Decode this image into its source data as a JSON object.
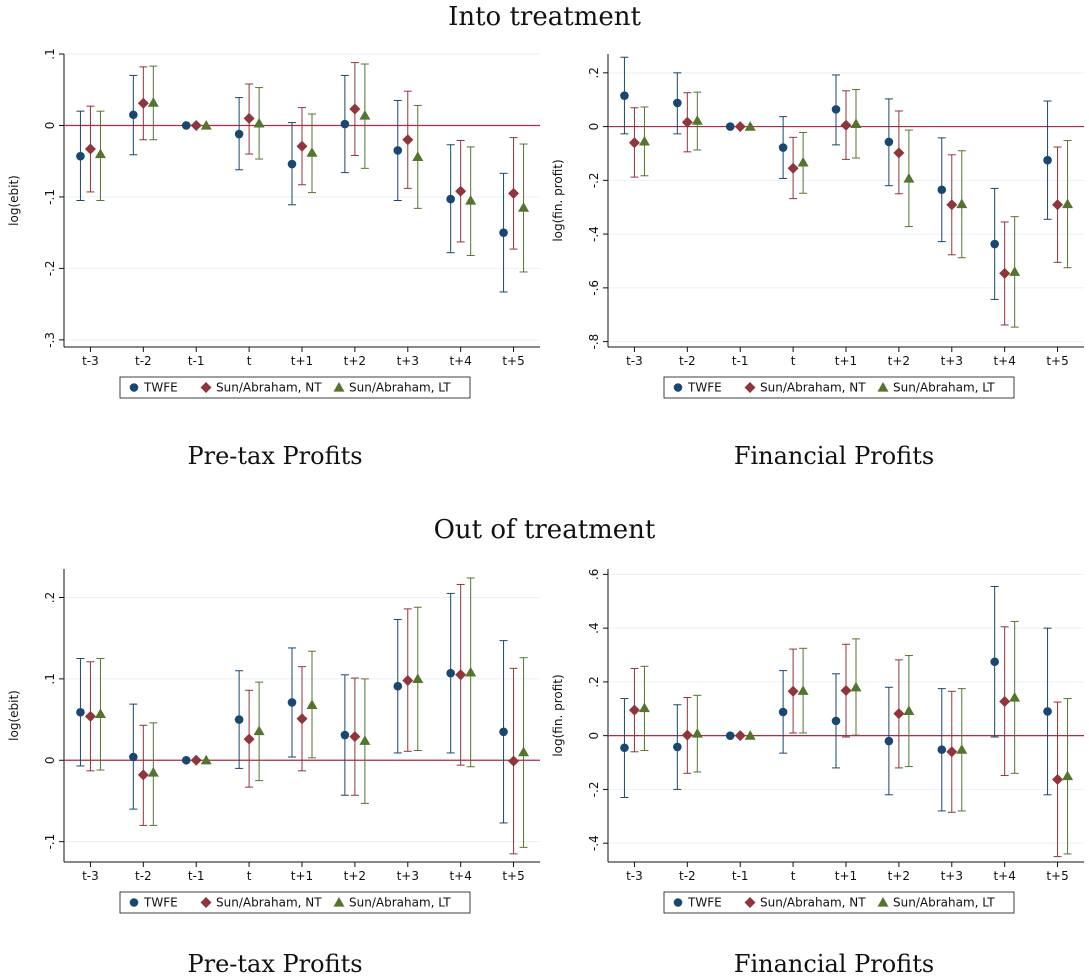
{
  "sections": [
    {
      "title": "Into treatment"
    },
    {
      "title": "Out of treatment"
    }
  ],
  "colors": {
    "TWFE": "#1a476f",
    "Sun/Abraham, NT": "#90353b",
    "Sun/Abraham, LT": "#55752f",
    "zero_line": "#b22a43",
    "grid": "#eaf0f5"
  },
  "legend": [
    "TWFE",
    "Sun/Abraham, NT",
    "Sun/Abraham, LT"
  ],
  "chart_data": [
    {
      "type": "scatter",
      "title": "Pre-tax Profits",
      "ylabel": "log(ebit)",
      "categories": [
        "t-3",
        "t-2",
        "t-1",
        "t",
        "t+1",
        "t+2",
        "t+3",
        "t+4",
        "t+5"
      ],
      "yticks": [
        0.1,
        0,
        -0.1,
        -0.2,
        -0.3
      ],
      "ytick_labels": [
        ".1",
        "0",
        "-.1",
        "-.2",
        "-.3"
      ],
      "ylim": [
        -0.31,
        0.1
      ],
      "series": [
        {
          "name": "TWFE",
          "marker": "circle",
          "values": [
            -0.043,
            0.015,
            0.0,
            -0.012,
            -0.054,
            0.002,
            -0.035,
            -0.103,
            -0.15
          ],
          "lower": [
            -0.105,
            -0.041,
            0.0,
            -0.062,
            -0.111,
            -0.066,
            -0.105,
            -0.178,
            -0.233
          ],
          "upper": [
            0.02,
            0.07,
            0.0,
            0.039,
            0.004,
            0.07,
            0.035,
            -0.027,
            -0.067
          ]
        },
        {
          "name": "Sun/Abraham, NT",
          "marker": "diamond",
          "values": [
            -0.033,
            0.031,
            0.0,
            0.01,
            -0.029,
            0.023,
            -0.02,
            -0.092,
            -0.095
          ],
          "lower": [
            -0.093,
            -0.02,
            0.0,
            -0.04,
            -0.083,
            -0.042,
            -0.088,
            -0.163,
            -0.173
          ],
          "upper": [
            0.027,
            0.082,
            0.0,
            0.058,
            0.025,
            0.088,
            0.048,
            -0.021,
            -0.017
          ]
        },
        {
          "name": "Sun/Abraham, LT",
          "marker": "triangle",
          "values": [
            -0.04,
            0.032,
            0.0,
            0.003,
            -0.038,
            0.014,
            -0.044,
            -0.105,
            -0.115
          ],
          "lower": [
            -0.105,
            -0.02,
            0.0,
            -0.047,
            -0.094,
            -0.06,
            -0.116,
            -0.182,
            -0.205
          ],
          "upper": [
            0.02,
            0.083,
            0.0,
            0.053,
            0.016,
            0.086,
            0.028,
            -0.03,
            -0.026
          ]
        }
      ]
    },
    {
      "type": "scatter",
      "title": "Financial Profits",
      "ylabel": "log(fin. profit)",
      "categories": [
        "t-3",
        "t-2",
        "t-1",
        "t",
        "t+1",
        "t+2",
        "t+3",
        "t+4",
        "t+5"
      ],
      "yticks": [
        0.2,
        0,
        -0.2,
        -0.4,
        -0.6,
        -0.8
      ],
      "ytick_labels": [
        ".2",
        "0",
        "-.2",
        "-.4",
        "-.6",
        "-.8"
      ],
      "ylim": [
        -0.82,
        0.27
      ],
      "series": [
        {
          "name": "TWFE",
          "marker": "circle",
          "values": [
            0.115,
            0.088,
            0.0,
            -0.078,
            0.064,
            -0.057,
            -0.235,
            -0.437,
            -0.125
          ],
          "lower": [
            -0.027,
            -0.027,
            0.0,
            -0.193,
            -0.068,
            -0.22,
            -0.428,
            -0.643,
            -0.345
          ],
          "upper": [
            0.258,
            0.2,
            0.0,
            0.037,
            0.192,
            0.103,
            -0.042,
            -0.23,
            0.095
          ]
        },
        {
          "name": "Sun/Abraham, NT",
          "marker": "diamond",
          "values": [
            -0.06,
            0.016,
            0.0,
            -0.155,
            0.005,
            -0.098,
            -0.291,
            -0.546,
            -0.291
          ],
          "lower": [
            -0.188,
            -0.094,
            0.0,
            -0.268,
            -0.122,
            -0.25,
            -0.477,
            -0.738,
            -0.505
          ],
          "upper": [
            0.07,
            0.126,
            0.0,
            -0.04,
            0.133,
            0.058,
            -0.105,
            -0.355,
            -0.076
          ]
        },
        {
          "name": "Sun/Abraham, LT",
          "marker": "triangle",
          "values": [
            -0.055,
            0.022,
            0.0,
            -0.133,
            0.01,
            -0.193,
            -0.288,
            -0.54,
            -0.288
          ],
          "lower": [
            -0.183,
            -0.087,
            0.0,
            -0.248,
            -0.117,
            -0.372,
            -0.488,
            -0.746,
            -0.525
          ],
          "upper": [
            0.073,
            0.128,
            0.0,
            -0.022,
            0.138,
            -0.013,
            -0.09,
            -0.335,
            -0.052
          ]
        }
      ]
    },
    {
      "type": "scatter",
      "title": "Pre-tax Profits",
      "ylabel": "log(ebit)",
      "categories": [
        "t-3",
        "t-2",
        "t-1",
        "t",
        "t+1",
        "t+2",
        "t+3",
        "t+4",
        "t+5"
      ],
      "yticks": [
        0.2,
        0.1,
        0,
        -0.1
      ],
      "ytick_labels": [
        ".2",
        ".1",
        "0",
        "-.1"
      ],
      "ylim": [
        -0.125,
        0.235
      ],
      "series": [
        {
          "name": "TWFE",
          "marker": "circle",
          "values": [
            0.059,
            0.004,
            0.0,
            0.05,
            0.071,
            0.031,
            0.091,
            0.107,
            0.035
          ],
          "lower": [
            -0.007,
            -0.06,
            0.0,
            -0.01,
            0.004,
            -0.043,
            0.009,
            0.009,
            -0.077
          ],
          "upper": [
            0.125,
            0.069,
            0.0,
            0.11,
            0.138,
            0.105,
            0.173,
            0.205,
            0.147
          ]
        },
        {
          "name": "Sun/Abraham, NT",
          "marker": "diamond",
          "values": [
            0.054,
            -0.018,
            0.0,
            0.026,
            0.051,
            0.029,
            0.098,
            0.105,
            -0.001
          ],
          "lower": [
            -0.013,
            -0.08,
            0.0,
            -0.033,
            -0.013,
            -0.043,
            0.011,
            -0.006,
            -0.115
          ],
          "upper": [
            0.121,
            0.043,
            0.0,
            0.086,
            0.115,
            0.101,
            0.186,
            0.216,
            0.113
          ]
        },
        {
          "name": "Sun/Abraham, LT",
          "marker": "triangle",
          "values": [
            0.057,
            -0.015,
            0.0,
            0.036,
            0.068,
            0.024,
            0.1,
            0.108,
            0.01
          ],
          "lower": [
            -0.012,
            -0.08,
            0.0,
            -0.025,
            0.003,
            -0.053,
            0.012,
            -0.008,
            -0.107
          ],
          "upper": [
            0.125,
            0.046,
            0.0,
            0.096,
            0.134,
            0.1,
            0.188,
            0.224,
            0.126
          ]
        }
      ]
    },
    {
      "type": "scatter",
      "title": "Financial Profits",
      "ylabel": "log(fin. profit)",
      "categories": [
        "t-3",
        "t-2",
        "t-1",
        "t",
        "t+1",
        "t+2",
        "t+3",
        "t+4",
        "t+5"
      ],
      "yticks": [
        0.6,
        0.4,
        0.2,
        0,
        -0.2,
        -0.4
      ],
      "ytick_labels": [
        ".6",
        ".4",
        ".2",
        "0",
        "-.2",
        "-.4"
      ],
      "ylim": [
        -0.47,
        0.62
      ],
      "series": [
        {
          "name": "TWFE",
          "marker": "circle",
          "values": [
            -0.045,
            -0.042,
            0.0,
            0.088,
            0.055,
            -0.02,
            -0.052,
            0.275,
            0.09
          ],
          "lower": [
            -0.23,
            -0.2,
            0.0,
            -0.065,
            -0.12,
            -0.22,
            -0.28,
            -0.005,
            -0.22
          ],
          "upper": [
            0.138,
            0.115,
            0.0,
            0.242,
            0.23,
            0.18,
            0.175,
            0.555,
            0.4
          ]
        },
        {
          "name": "Sun/Abraham, NT",
          "marker": "diamond",
          "values": [
            0.095,
            0.002,
            0.0,
            0.165,
            0.168,
            0.082,
            -0.06,
            0.127,
            -0.163
          ],
          "lower": [
            -0.06,
            -0.14,
            0.0,
            0.01,
            -0.005,
            -0.12,
            -0.285,
            -0.148,
            -0.45
          ],
          "upper": [
            0.25,
            0.142,
            0.0,
            0.322,
            0.34,
            0.282,
            0.165,
            0.405,
            0.125
          ]
        },
        {
          "name": "Sun/Abraham, LT",
          "marker": "triangle",
          "values": [
            0.103,
            0.008,
            0.0,
            0.167,
            0.18,
            0.092,
            -0.052,
            0.142,
            -0.15
          ],
          "lower": [
            -0.055,
            -0.135,
            0.0,
            0.01,
            0.002,
            -0.115,
            -0.28,
            -0.14,
            -0.44
          ],
          "upper": [
            0.258,
            0.15,
            0.0,
            0.325,
            0.36,
            0.298,
            0.175,
            0.425,
            0.138
          ]
        }
      ]
    }
  ]
}
